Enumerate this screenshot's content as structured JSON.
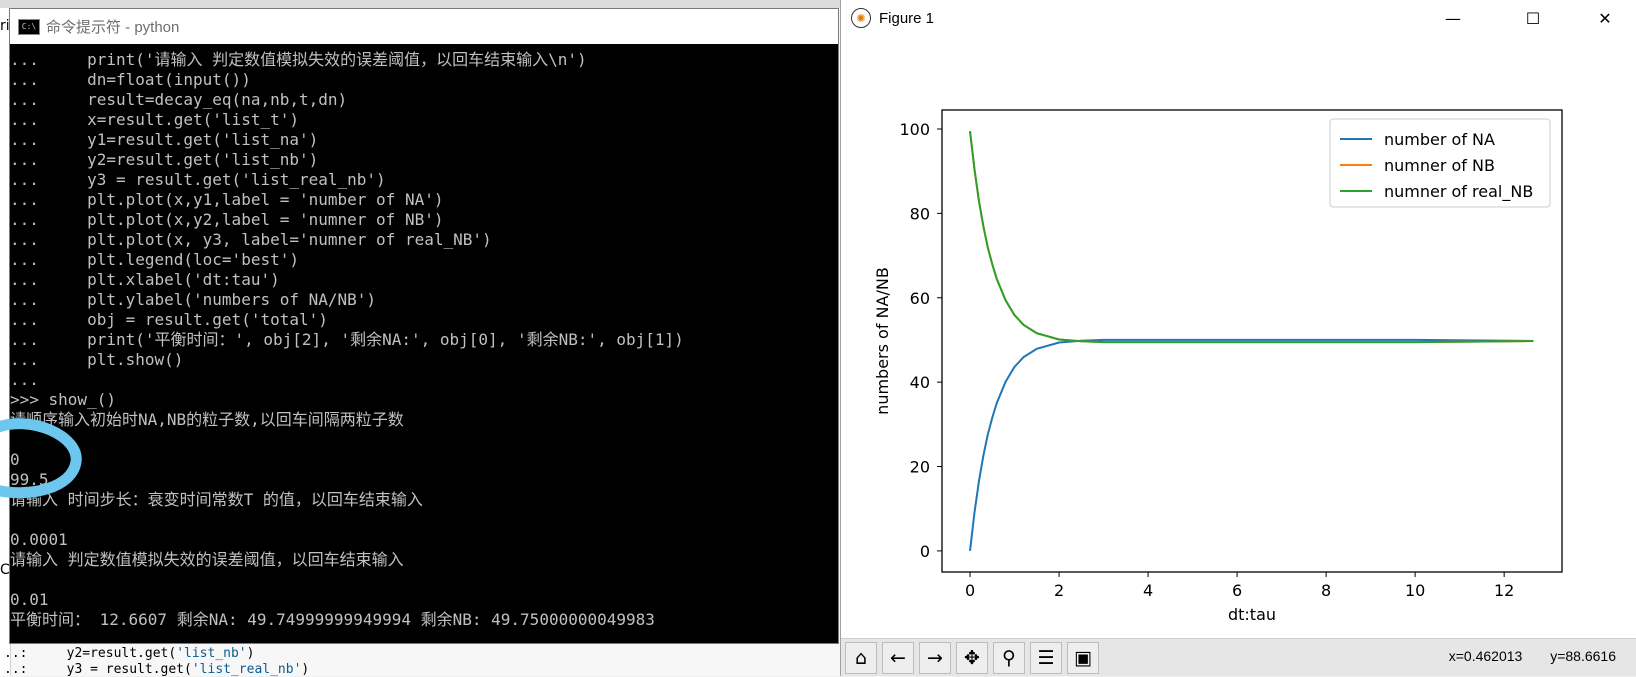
{
  "background_editor": {
    "left_chars": [
      "ri",
      "C"
    ],
    "code_lines": [
      {
        "prefix": "..:     y2=result.get(",
        "str": "'list_nb'",
        "suffix": ")"
      },
      {
        "prefix": "..:     y3 = result.get(",
        "str": "'list_real_nb'",
        "suffix": ")"
      }
    ]
  },
  "console": {
    "title": "命令提示符 - python",
    "icon_text": "C:\\",
    "lines": [
      "...     print('请输入 判定数值模拟失效的误差阈值，以回车结束输入\\n')",
      "...     dn=float(input())",
      "...     result=decay_eq(na,nb,t,dn)",
      "...     x=result.get('list_t')",
      "...     y1=result.get('list_na')",
      "...     y2=result.get('list_nb')",
      "...     y3 = result.get('list_real_nb')",
      "...     plt.plot(x,y1,label = 'number of NA')",
      "...     plt.plot(x,y2,label = 'numner of NB')",
      "...     plt.plot(x, y3, label='numner of real_NB')",
      "...     plt.legend(loc='best')",
      "...     plt.xlabel('dt:tau')",
      "...     plt.ylabel('numbers of NA/NB')",
      "...     obj = result.get('total')",
      "...     print('平衡时间：', obj[2], '剩余NA:', obj[0], '剩余NB:', obj[1])",
      "...     plt.show()",
      "...",
      ">>> show_()",
      "请顺序输入初始时NA,NB的粒子数,以回车间隔两粒子数",
      "",
      "0",
      "99.5",
      "请输入 时间步长：衰变时间常数T 的值，以回车结束输入",
      "",
      "0.0001",
      "请输入 判定数值模拟失效的误差阈值，以回车结束输入",
      "",
      "0.01",
      "平衡时间： 12.6607 剩余NA: 49.74999999949994 剩余NB: 49.75000000049983"
    ]
  },
  "figure": {
    "title": "Figure 1",
    "window_controls": {
      "minimize": "—",
      "maximize": "☐",
      "close": "✕"
    },
    "toolbar": [
      {
        "name": "home-button",
        "icon": "⌂"
      },
      {
        "name": "back-button",
        "icon": "←"
      },
      {
        "name": "forward-button",
        "icon": "→"
      },
      {
        "name": "pan-button",
        "icon": "✥"
      },
      {
        "name": "zoom-button",
        "icon": "⚲"
      },
      {
        "name": "subplots-button",
        "icon": "☰"
      },
      {
        "name": "save-button",
        "icon": "▣"
      }
    ],
    "coords": {
      "x": "x=0.462013",
      "y": "y=88.6616"
    }
  },
  "chart_data": {
    "type": "line",
    "title": "",
    "xlabel": "dt:tau",
    "ylabel": "numbers of NA/NB",
    "xlim": [
      -0.63,
      13.3
    ],
    "ylim": [
      -5,
      104.5
    ],
    "xticks": [
      0,
      2,
      4,
      6,
      8,
      10,
      12
    ],
    "yticks": [
      0,
      20,
      40,
      60,
      80,
      100
    ],
    "legend": "top-right",
    "grid": false,
    "series": [
      {
        "name": "number of NA",
        "color": "#1f77b4",
        "x": [
          0,
          0.1,
          0.2,
          0.3,
          0.4,
          0.5,
          0.6,
          0.8,
          1.0,
          1.2,
          1.5,
          2.0,
          2.5,
          3.0,
          3.5,
          4.0,
          5,
          6,
          8,
          10,
          12.6607
        ],
        "y": [
          0,
          9.1,
          16.5,
          22.6,
          27.6,
          31.6,
          35.0,
          40.1,
          43.6,
          45.9,
          47.9,
          49.4,
          49.8,
          50.0,
          50.0,
          50.0,
          50.0,
          50.0,
          50.0,
          50.0,
          49.75
        ]
      },
      {
        "name": "numner of NB",
        "color": "#ff7f0e",
        "x": [
          0,
          0.1,
          0.2,
          0.3,
          0.4,
          0.5,
          0.6,
          0.8,
          1.0,
          1.2,
          1.5,
          2.0,
          2.5,
          3.0,
          3.5,
          4.0,
          5,
          6,
          8,
          10,
          12.6607
        ],
        "y": [
          99.5,
          90.4,
          83.0,
          76.9,
          71.9,
          67.9,
          64.5,
          59.4,
          55.9,
          53.6,
          51.6,
          50.1,
          49.7,
          49.5,
          49.5,
          49.5,
          49.5,
          49.5,
          49.5,
          49.5,
          49.75
        ]
      },
      {
        "name": "numner of real_NB",
        "color": "#2ca02c",
        "x": [
          0,
          0.1,
          0.2,
          0.3,
          0.4,
          0.5,
          0.6,
          0.8,
          1.0,
          1.2,
          1.5,
          2.0,
          2.5,
          3.0,
          3.5,
          4.0,
          5,
          6,
          8,
          10,
          12.6607
        ],
        "y": [
          99.5,
          90.4,
          83.0,
          76.9,
          71.9,
          67.9,
          64.5,
          59.4,
          55.9,
          53.6,
          51.6,
          50.1,
          49.7,
          49.5,
          49.5,
          49.5,
          49.5,
          49.5,
          49.5,
          49.5,
          49.75
        ]
      }
    ]
  }
}
